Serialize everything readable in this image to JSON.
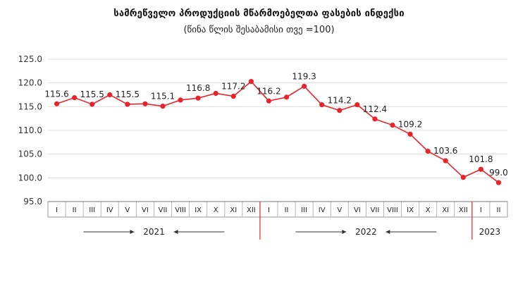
{
  "chart_data": {
    "type": "line",
    "title": "სამრეწველო პროდუქციის მწარმოებელთა ფასების ინდექსი",
    "subtitle": "(წინა წლის შესაბამისი თვე =100)",
    "ylim": [
      95.0,
      125.0
    ],
    "yticks": [
      "95.0",
      "100.0",
      "105.0",
      "110.0",
      "115.0",
      "120.0",
      "125.0"
    ],
    "categories": [
      "I",
      "II",
      "III",
      "IV",
      "V",
      "VI",
      "VII",
      "VIII",
      "IX",
      "X",
      "XI",
      "XII",
      "I",
      "II",
      "III",
      "IV",
      "V",
      "VI",
      "VII",
      "VIII",
      "IX",
      "X",
      "XI",
      "XII",
      "I",
      "II"
    ],
    "values": [
      115.6,
      116.9,
      115.5,
      117.5,
      115.5,
      115.6,
      115.1,
      116.4,
      116.8,
      117.8,
      117.2,
      120.3,
      116.2,
      117.0,
      119.3,
      115.4,
      114.2,
      115.4,
      112.4,
      111.1,
      109.2,
      105.6,
      103.6,
      100.1,
      101.8,
      99.0
    ],
    "data_labels": [
      {
        "i": 0,
        "text": "115.6"
      },
      {
        "i": 2,
        "text": "115.5"
      },
      {
        "i": 4,
        "text": "115.5"
      },
      {
        "i": 6,
        "text": "115.1"
      },
      {
        "i": 8,
        "text": "116.8"
      },
      {
        "i": 10,
        "text": "117.2"
      },
      {
        "i": 12,
        "text": "116.2"
      },
      {
        "i": 14,
        "text": "119.3"
      },
      {
        "i": 16,
        "text": "114.2"
      },
      {
        "i": 18,
        "text": "112.4"
      },
      {
        "i": 20,
        "text": "109.2"
      },
      {
        "i": 22,
        "text": "103.6"
      },
      {
        "i": 24,
        "text": "101.8"
      },
      {
        "i": 25,
        "text": "99.0"
      }
    ],
    "years": [
      {
        "label": "2021",
        "start": 0,
        "end": 11
      },
      {
        "label": "2022",
        "start": 12,
        "end": 23
      },
      {
        "label": "2023",
        "start": 24,
        "end": 25
      }
    ],
    "grid": true,
    "legend": "none",
    "line_color": "#e8232a",
    "marker_color": "#e8232a",
    "year_separator_color": "#e8232a"
  }
}
